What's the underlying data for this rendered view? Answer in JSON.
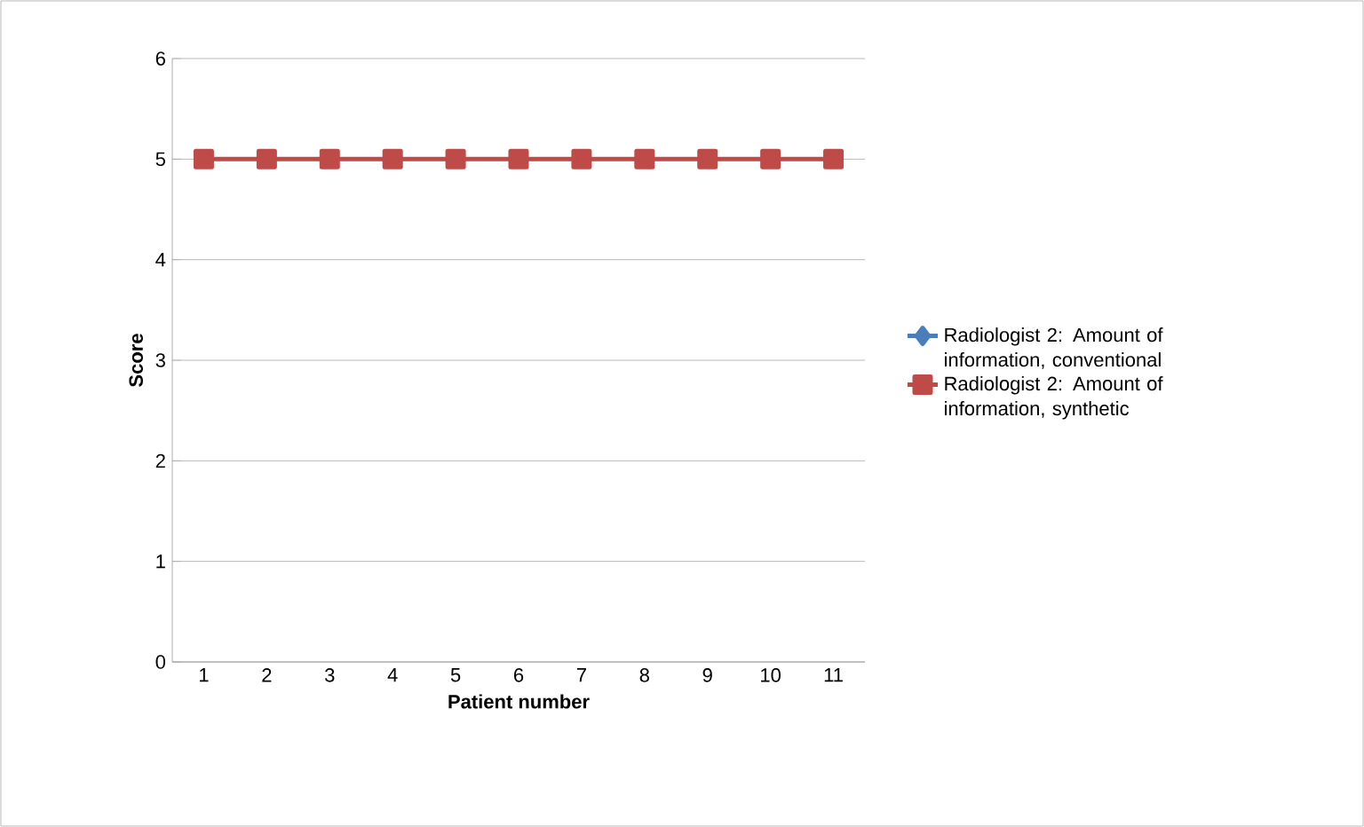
{
  "chart_data": {
    "type": "line",
    "xlabel": "Patient number",
    "ylabel": "Score",
    "categories": [
      "1",
      "2",
      "3",
      "4",
      "5",
      "6",
      "7",
      "8",
      "9",
      "10",
      "11"
    ],
    "series": [
      {
        "name": "Radiologist 2: Amount of information, conventional",
        "color": "#4a7ebb",
        "marker": "diamond",
        "values": [
          null,
          null,
          null,
          null,
          null,
          null,
          null,
          null,
          null,
          null,
          null
        ]
      },
      {
        "name": "Radiologist 2: Amount of information, synthetic",
        "color": "#be4b48",
        "marker": "square",
        "values": [
          5,
          5,
          5,
          5,
          5,
          5,
          5,
          5,
          5,
          5,
          5
        ]
      }
    ],
    "ylim": [
      0,
      6
    ],
    "yticks": [
      0,
      1,
      2,
      3,
      4,
      5,
      6
    ],
    "grid": "y",
    "legend": "right",
    "line_style": "solid"
  }
}
